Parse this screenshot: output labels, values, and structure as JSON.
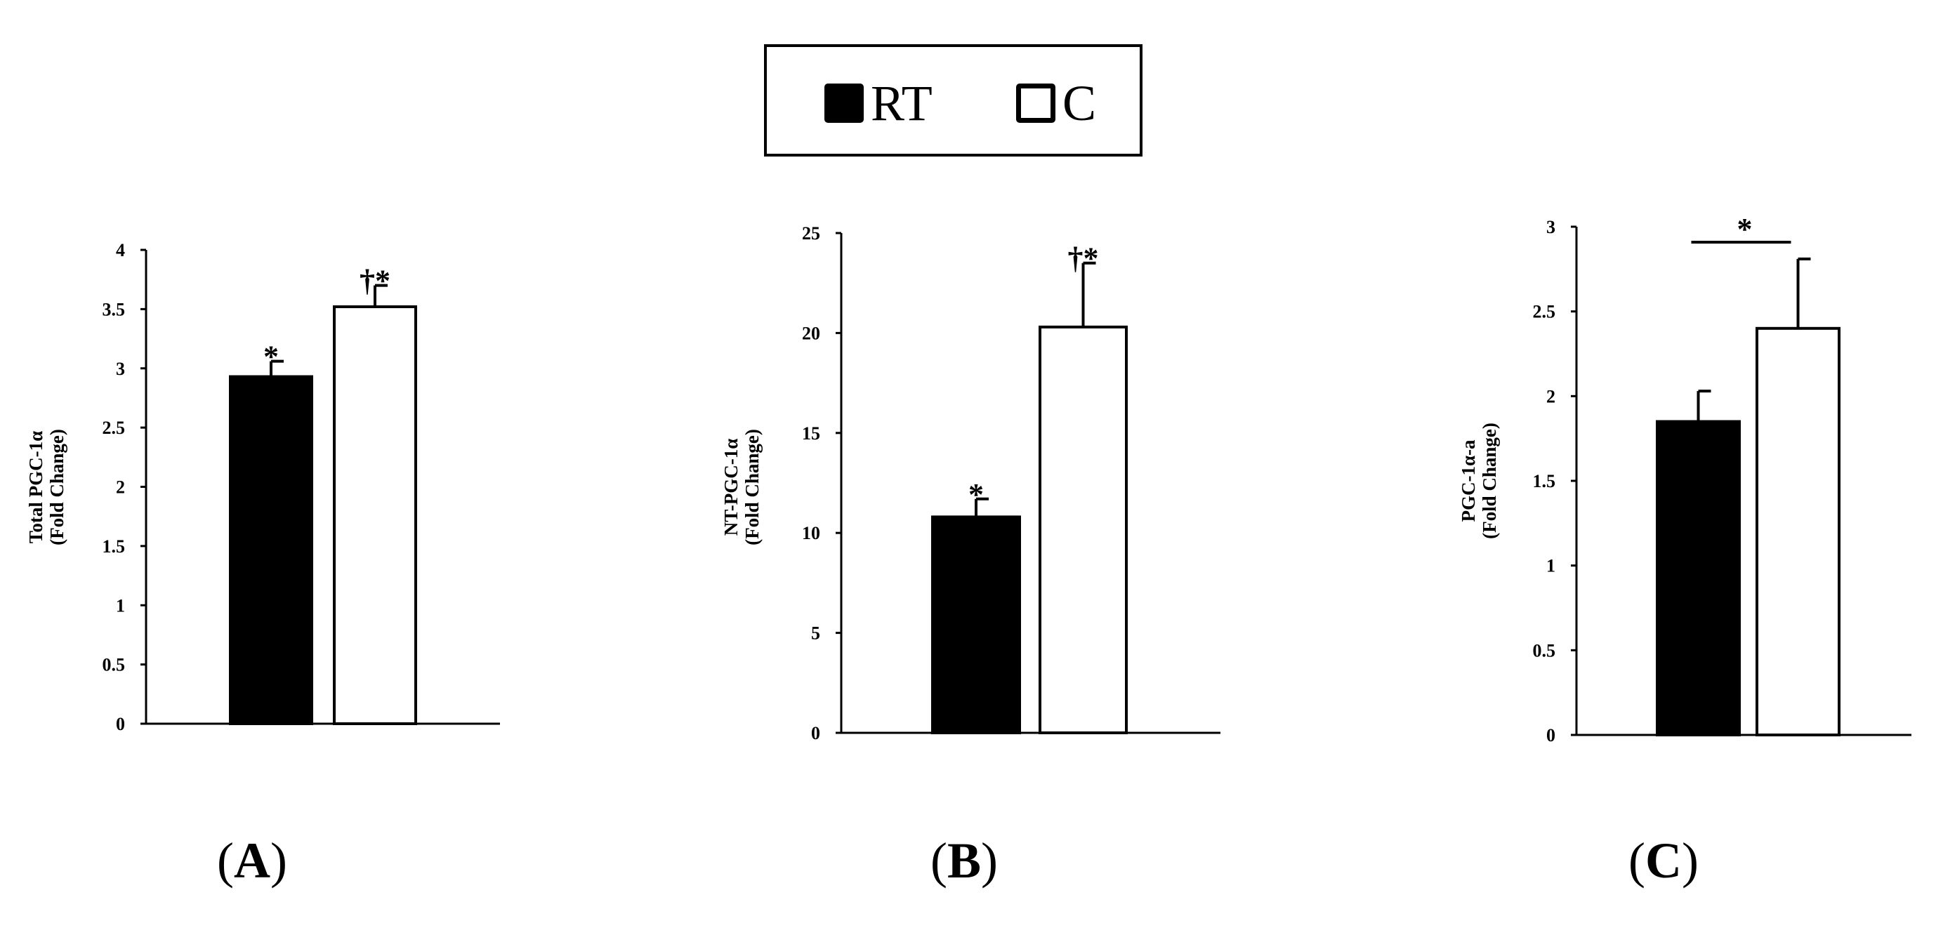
{
  "legend": {
    "items": [
      {
        "label": "RT",
        "fill": "#000000"
      },
      {
        "label": "C",
        "fill": "#ffffff"
      }
    ]
  },
  "colors": {
    "RT": "#000000",
    "C": "#ffffff",
    "stroke": "#000000"
  },
  "panels": [
    {
      "label": "A",
      "open": "(",
      "close": ")"
    },
    {
      "label": "B",
      "open": "(",
      "close": ")"
    },
    {
      "label": "C",
      "open": "(",
      "close": ")"
    }
  ],
  "chart_data": [
    {
      "type": "bar",
      "categories": [
        "RT",
        "C"
      ],
      "values": [
        2.93,
        3.52
      ],
      "error": [
        0.13,
        0.18
      ],
      "ylabel": [
        "Total PGC-1α",
        "(Fold Change)"
      ],
      "ylim": [
        0,
        4
      ],
      "yticks": [
        "0",
        "0.5",
        "1",
        "1.5",
        "2",
        "2.5",
        "3",
        "3.5",
        "4"
      ],
      "annotations": [
        {
          "bar": 0,
          "text": "*"
        },
        {
          "bar": 1,
          "text": "†*"
        }
      ],
      "bracket": null,
      "panel": "A"
    },
    {
      "type": "bar",
      "categories": [
        "RT",
        "C"
      ],
      "values": [
        10.8,
        20.3
      ],
      "error": [
        0.9,
        3.2
      ],
      "ylabel": [
        "NT-PGC-1α",
        "(Fold Change)"
      ],
      "ylim": [
        0,
        25
      ],
      "yticks": [
        "0",
        "5",
        "10",
        "15",
        "20",
        "25"
      ],
      "annotations": [
        {
          "bar": 0,
          "text": "*"
        },
        {
          "bar": 1,
          "text": "†*"
        }
      ],
      "bracket": null,
      "panel": "B"
    },
    {
      "type": "bar",
      "categories": [
        "RT",
        "C"
      ],
      "values": [
        1.85,
        2.4
      ],
      "error": [
        0.18,
        0.41
      ],
      "ylabel": [
        "PGC-1α-a",
        "(Fold Change)"
      ],
      "ylim": [
        0,
        3
      ],
      "yticks": [
        "0",
        "0.5",
        "1",
        "1.5",
        "2",
        "2.5",
        "3"
      ],
      "annotations": [],
      "bracket": {
        "text": "*"
      },
      "panel": "C"
    }
  ]
}
